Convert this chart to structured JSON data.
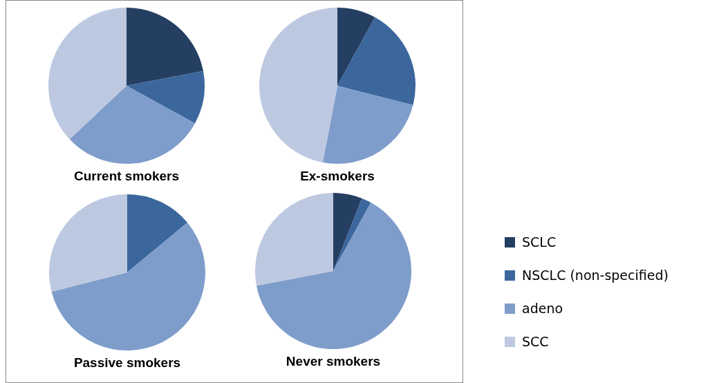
{
  "chart_data": {
    "type": "pie",
    "categories": [
      "SCLC",
      "NSCLC (non-specified)",
      "adeno",
      "SCC"
    ],
    "colors": [
      "#253f63",
      "#3b679d",
      "#7f9dcb",
      "#bdc9e1"
    ],
    "legend": "right",
    "series": [
      {
        "name": "Current smokers",
        "values": [
          22,
          11,
          30,
          37
        ]
      },
      {
        "name": "Ex-smokers",
        "values": [
          8,
          21,
          24,
          47
        ]
      },
      {
        "name": "Passive smokers",
        "values": [
          0,
          14,
          57,
          29
        ]
      },
      {
        "name": "Never smokers",
        "values": [
          6,
          2,
          64,
          28
        ]
      }
    ]
  }
}
